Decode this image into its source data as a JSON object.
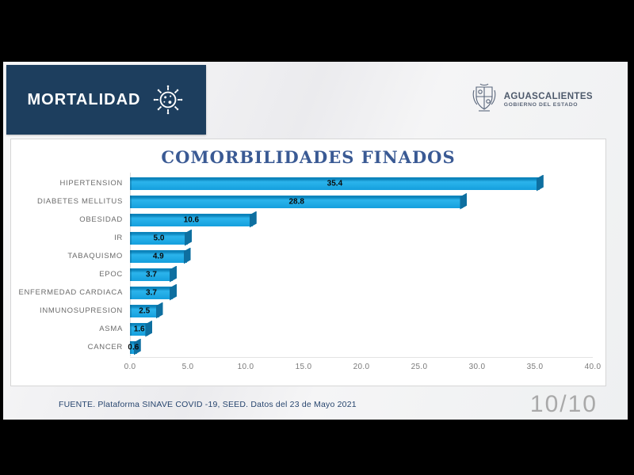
{
  "banner": {
    "title": "MORTALIDAD"
  },
  "logo": {
    "name": "AGUASCALIENTES",
    "subtitle": "GOBIERNO DEL ESTADO"
  },
  "footer": {
    "source": "FUENTE. Plataforma SINAVE COVID -19, SEED. Datos del 23 de Mayo 2021",
    "page_indicator": "10/10"
  },
  "colors": {
    "banner_bg": "#1d3e5e",
    "title_text": "#3a5a94",
    "bar_fill": "#1ea9e3",
    "bar_cap": "#0e6fa0",
    "source_text": "#27456e",
    "page_indicator_text": "#a9a9a9"
  },
  "chart_data": {
    "type": "bar",
    "orientation": "horizontal",
    "title": "COMORBILIDADES FINADOS",
    "categories": [
      "HIPERTENSION",
      "DIABETES MELLITUS",
      "OBESIDAD",
      "IR",
      "TABAQUISMO",
      "EPOC",
      "ENFERMEDAD CARDIACA",
      "INMUNOSUPRESION",
      "ASMA",
      "CANCER"
    ],
    "values": [
      35.4,
      28.8,
      10.6,
      5.0,
      4.9,
      3.7,
      3.7,
      2.5,
      1.6,
      0.6
    ],
    "value_labels": [
      "35.4",
      "28.8",
      "10.6",
      "5.0",
      "4.9",
      "3.7",
      "3.7",
      "2.5",
      "1.6",
      "0.6"
    ],
    "xlabel": "",
    "ylabel": "",
    "xlim": [
      0,
      40
    ],
    "x_ticks": [
      "0.0",
      "5.0",
      "10.0",
      "15.0",
      "20.0",
      "25.0",
      "30.0",
      "35.0",
      "40.0"
    ],
    "grid": false,
    "legend": false,
    "data_labels": true
  }
}
